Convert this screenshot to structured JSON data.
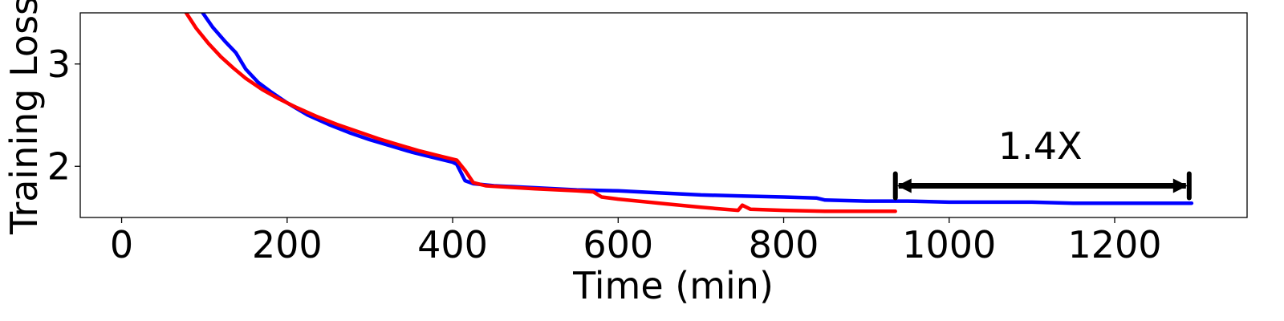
{
  "chart_data": {
    "type": "line",
    "xlabel": "Time (min)",
    "ylabel": "Training Loss",
    "xlim": [
      -50,
      1360
    ],
    "ylim": [
      1.5,
      3.5
    ],
    "x_ticks": [
      0,
      200,
      400,
      600,
      800,
      1000,
      1200
    ],
    "x_tick_labels": [
      "0",
      "200",
      "400",
      "600",
      "800",
      "1000",
      "1200"
    ],
    "y_ticks": [
      2,
      3
    ],
    "y_tick_labels": [
      "2",
      "3"
    ],
    "grid": false,
    "legend": "none",
    "series": [
      {
        "color": "#0000ff",
        "points": [
          [
            98,
            3.5
          ],
          [
            110,
            3.36
          ],
          [
            125,
            3.22
          ],
          [
            138,
            3.11
          ],
          [
            150,
            2.95
          ],
          [
            165,
            2.82
          ],
          [
            180,
            2.73
          ],
          [
            200,
            2.62
          ],
          [
            225,
            2.5
          ],
          [
            250,
            2.41
          ],
          [
            275,
            2.33
          ],
          [
            300,
            2.26
          ],
          [
            325,
            2.2
          ],
          [
            350,
            2.14
          ],
          [
            375,
            2.09
          ],
          [
            400,
            2.04
          ],
          [
            405,
            2.02
          ],
          [
            415,
            1.86
          ],
          [
            425,
            1.83
          ],
          [
            450,
            1.81
          ],
          [
            500,
            1.79
          ],
          [
            550,
            1.77
          ],
          [
            600,
            1.76
          ],
          [
            650,
            1.74
          ],
          [
            700,
            1.72
          ],
          [
            750,
            1.71
          ],
          [
            800,
            1.7
          ],
          [
            840,
            1.69
          ],
          [
            850,
            1.67
          ],
          [
            900,
            1.66
          ],
          [
            950,
            1.66
          ],
          [
            1000,
            1.65
          ],
          [
            1050,
            1.65
          ],
          [
            1100,
            1.65
          ],
          [
            1150,
            1.64
          ],
          [
            1200,
            1.64
          ],
          [
            1250,
            1.64
          ],
          [
            1293,
            1.64
          ]
        ]
      },
      {
        "color": "#ff0000",
        "points": [
          [
            78,
            3.5
          ],
          [
            90,
            3.35
          ],
          [
            105,
            3.2
          ],
          [
            120,
            3.07
          ],
          [
            135,
            2.96
          ],
          [
            150,
            2.86
          ],
          [
            170,
            2.75
          ],
          [
            190,
            2.66
          ],
          [
            210,
            2.58
          ],
          [
            235,
            2.49
          ],
          [
            260,
            2.41
          ],
          [
            285,
            2.34
          ],
          [
            310,
            2.27
          ],
          [
            335,
            2.21
          ],
          [
            360,
            2.15
          ],
          [
            385,
            2.1
          ],
          [
            405,
            2.06
          ],
          [
            415,
            1.96
          ],
          [
            425,
            1.84
          ],
          [
            440,
            1.81
          ],
          [
            500,
            1.78
          ],
          [
            550,
            1.76
          ],
          [
            570,
            1.75
          ],
          [
            580,
            1.7
          ],
          [
            600,
            1.68
          ],
          [
            650,
            1.64
          ],
          [
            700,
            1.6
          ],
          [
            745,
            1.57
          ],
          [
            750,
            1.62
          ],
          [
            760,
            1.58
          ],
          [
            800,
            1.57
          ],
          [
            850,
            1.56
          ],
          [
            900,
            1.56
          ],
          [
            935,
            1.56
          ]
        ]
      }
    ],
    "annotation": {
      "text": "1.4X",
      "text_x": 1110,
      "text_y": 2.2,
      "arrow": {
        "x_start": 935,
        "x_end": 1290,
        "y": 1.81,
        "color": "#000000"
      }
    }
  }
}
